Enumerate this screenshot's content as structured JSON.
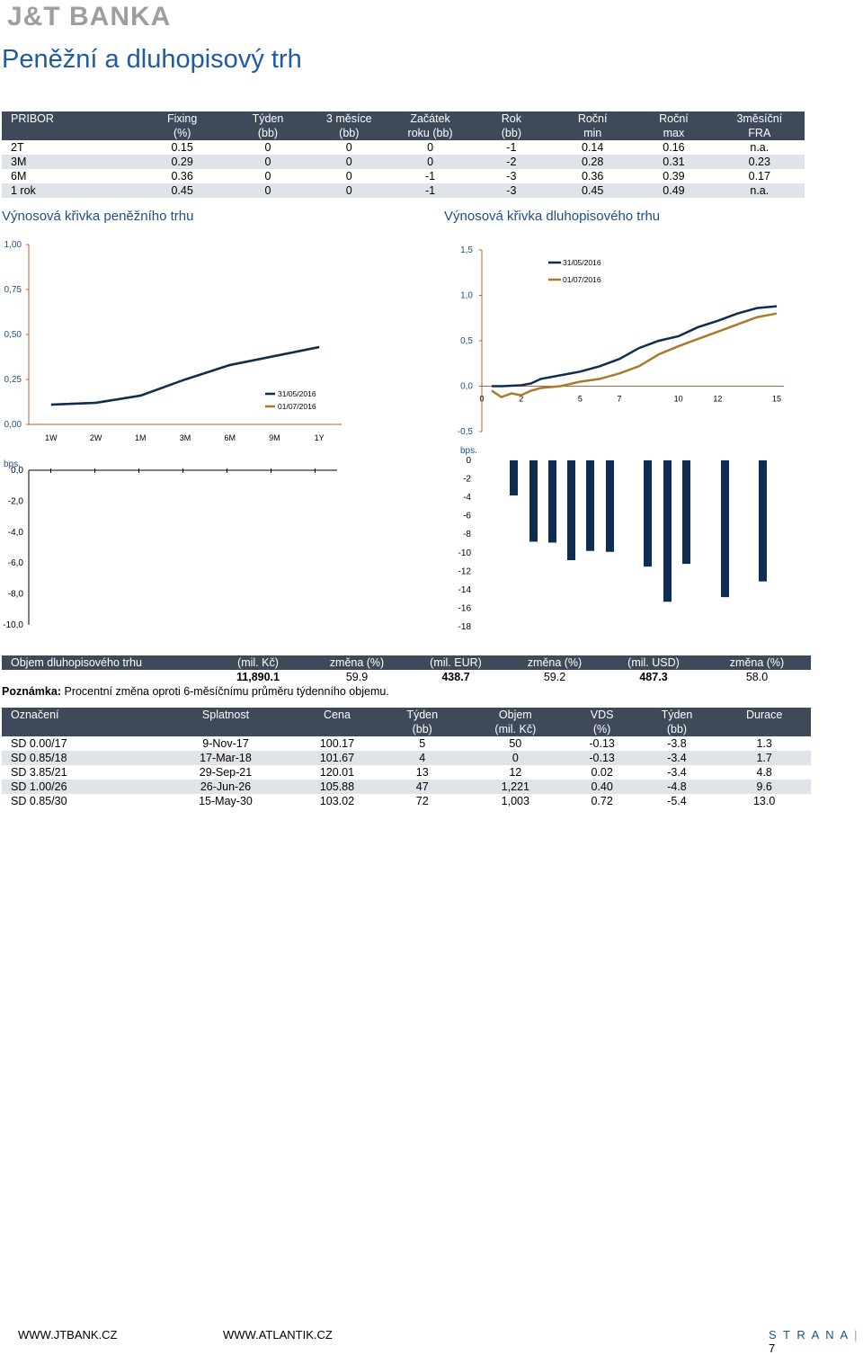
{
  "header": {
    "logo": "J&T BANKA",
    "title": "Peněžní a dluhopisový trh"
  },
  "pribor": {
    "headers": [
      [
        "PRIBOR",
        ""
      ],
      [
        "Fixing",
        "(%)"
      ],
      [
        "Týden",
        "(bb)"
      ],
      [
        "3 měsíce",
        "(bb)"
      ],
      [
        "Začátek",
        "roku (bb)"
      ],
      [
        "Rok",
        "(bb)"
      ],
      [
        "Roční",
        "min"
      ],
      [
        "Roční",
        "max"
      ],
      [
        "3měsíční",
        "FRA"
      ]
    ],
    "rows": [
      [
        "2T",
        "0.15",
        "0",
        "0",
        "0",
        "-1",
        "0.14",
        "0.16",
        "n.a."
      ],
      [
        "3M",
        "0.29",
        "0",
        "0",
        "0",
        "-2",
        "0.28",
        "0.31",
        "0.23"
      ],
      [
        "6M",
        "0.36",
        "0",
        "0",
        "-1",
        "-3",
        "0.36",
        "0.39",
        "0.17"
      ],
      [
        "1 rok",
        "0.45",
        "0",
        "0",
        "-1",
        "-3",
        "0.45",
        "0.49",
        "n.a."
      ]
    ]
  },
  "sections": {
    "money": "Výnosová křivka peněžního trhu",
    "bond": "Výnosová křivka dluhopisového trhu"
  },
  "chart_data": [
    {
      "type": "line",
      "categories": [
        "1W",
        "2W",
        "1M",
        "3M",
        "6M",
        "9M",
        "1Y"
      ],
      "series": [
        {
          "name": "31/05/2016",
          "color": "#0d2e52",
          "values": [
            0.11,
            0.12,
            0.16,
            0.25,
            0.33,
            0.38,
            0.43
          ]
        },
        {
          "name": "01/07/2016",
          "color": "#a97a2a",
          "values": [
            0.11,
            0.12,
            0.16,
            0.25,
            0.33,
            0.38,
            0.43
          ]
        }
      ],
      "ylim": [
        0,
        1
      ],
      "yticks": [
        "0,00",
        "0,25",
        "0,50",
        "0,75",
        "1,00"
      ],
      "legend": "center-right"
    },
    {
      "type": "bar",
      "ylabel": "bps.",
      "categories": [
        "1W",
        "2W",
        "1M",
        "3M",
        "6M",
        "9M",
        "1Y"
      ],
      "values": [
        0,
        0,
        0,
        0,
        0,
        0,
        0
      ],
      "ylim": [
        -10,
        0
      ],
      "yticks": [
        "0,0",
        "-2,0",
        "-4,0",
        "-6,0",
        "-8,0",
        "-10,0"
      ]
    },
    {
      "type": "line",
      "x_ticks": [
        "0",
        "2",
        "5",
        "7",
        "10",
        "12",
        "15"
      ],
      "series": [
        {
          "name": "31/05/2016",
          "color": "#0d2e52",
          "x": [
            0.5,
            1,
            2,
            2.5,
            3,
            4,
            5,
            6,
            7,
            8,
            9,
            10,
            11,
            12,
            13,
            14,
            15
          ],
          "values": [
            0.0,
            0.0,
            0.01,
            0.03,
            0.08,
            0.12,
            0.16,
            0.22,
            0.3,
            0.42,
            0.5,
            0.55,
            0.65,
            0.72,
            0.8,
            0.86,
            0.88
          ]
        },
        {
          "name": "01/07/2016",
          "color": "#a97a2a",
          "x": [
            0.5,
            1,
            1.5,
            2,
            2.5,
            3,
            4,
            5,
            6,
            7,
            8,
            9,
            10,
            11,
            12,
            13,
            14,
            15
          ],
          "values": [
            -0.05,
            -0.12,
            -0.08,
            -0.1,
            -0.05,
            -0.02,
            0.0,
            0.05,
            0.08,
            0.14,
            0.22,
            0.35,
            0.44,
            0.52,
            0.6,
            0.68,
            0.76,
            0.8
          ]
        }
      ],
      "ylim": [
        -0.5,
        1.5
      ],
      "yticks": [
        "-0,5",
        "0,0",
        "0,5",
        "1,0",
        "1,5"
      ],
      "legend": "top"
    },
    {
      "type": "bar",
      "ylabel": "bps.",
      "values": [
        -3.8,
        -8.8,
        -8.9,
        -10.8,
        -9.8,
        -9.9,
        -11.5,
        -15.3,
        -11.2,
        -14.8,
        -13.1
      ],
      "ylim": [
        -18,
        0
      ],
      "yticks": [
        "0",
        "-2",
        "-4",
        "-6",
        "-8",
        "-10",
        "-12",
        "-14",
        "-16",
        "-18"
      ]
    }
  ],
  "volume": {
    "headers": [
      "Objem dluhopisového trhu",
      "(mil. Kč)",
      "změna (%)",
      "(mil. EUR)",
      "změna (%)",
      "(mil. USD)",
      "změna (%)"
    ],
    "row": [
      "",
      "11,890.1",
      "59.9",
      "438.7",
      "59.2",
      "487.3",
      "58.0"
    ],
    "note_label": "Poznámka:",
    "note": "Procentní změna oproti 6-měsíčnímu průměru týdenního objemu."
  },
  "bonds": {
    "headers": [
      [
        "Označení",
        ""
      ],
      [
        "Splatnost",
        ""
      ],
      [
        "Cena",
        ""
      ],
      [
        "Týden",
        "(bb)"
      ],
      [
        "Objem",
        "(mil. Kč)"
      ],
      [
        "VDS",
        "(%)"
      ],
      [
        "Týden",
        "(bb)"
      ],
      [
        "Durace",
        ""
      ]
    ],
    "rows": [
      [
        "SD 0.00/17",
        "9-Nov-17",
        "100.17",
        "5",
        "50",
        "-0.13",
        "-3.8",
        "1.3"
      ],
      [
        "SD 0.85/18",
        "17-Mar-18",
        "101.67",
        "4",
        "0",
        "-0.13",
        "-3.4",
        "1.7"
      ],
      [
        "SD 3.85/21",
        "29-Sep-21",
        "120.01",
        "13",
        "12",
        "0.02",
        "-3.4",
        "4.8"
      ],
      [
        "SD 1.00/26",
        "26-Jun-26",
        "105.88",
        "47",
        "1,221",
        "0.40",
        "-4.8",
        "9.6"
      ],
      [
        "SD 0.85/30",
        "15-May-30",
        "103.02",
        "72",
        "1,003",
        "0.72",
        "-5.4",
        "13.0"
      ]
    ]
  },
  "footer": {
    "link1": "WWW.JTBANK.CZ",
    "link2": "WWW.ATLANTIK.CZ",
    "page_label": "S T R A N A",
    "page_num": "7"
  }
}
